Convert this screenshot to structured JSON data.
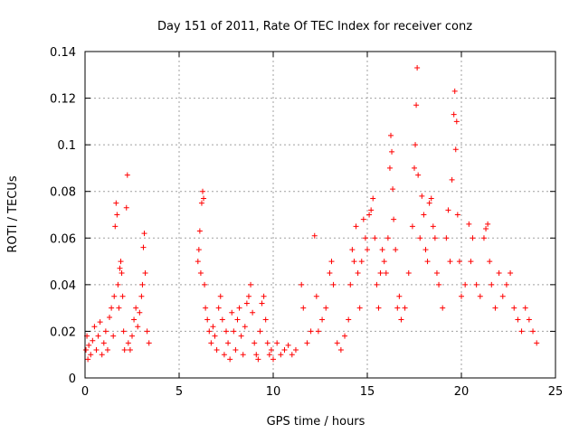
{
  "chart_data": {
    "type": "scatter",
    "title": "Day 151 of 2011, Rate Of TEC Index for receiver conz",
    "xlabel": "GPS time / hours",
    "ylabel": "ROTI / TECUs",
    "xlim": [
      0,
      25
    ],
    "ylim": [
      0,
      0.14
    ],
    "xticks": [
      "0",
      "5",
      "10",
      "15",
      "20",
      "25"
    ],
    "yticks": [
      "0",
      "0.02",
      "0.04",
      "0.06",
      "0.08",
      "0.1",
      "0.12",
      "0.14"
    ],
    "grid": true,
    "marker": "plus",
    "color": "#ff0000",
    "series": [
      {
        "points": [
          [
            0.05,
            0.012
          ],
          [
            0.1,
            0.018
          ],
          [
            0.15,
            0.008
          ],
          [
            0.2,
            0.014
          ],
          [
            0.3,
            0.01
          ],
          [
            0.4,
            0.016
          ],
          [
            0.5,
            0.022
          ],
          [
            0.6,
            0.012
          ],
          [
            0.7,
            0.018
          ],
          [
            0.8,
            0.024
          ],
          [
            0.9,
            0.01
          ],
          [
            1.0,
            0.015
          ],
          [
            1.1,
            0.02
          ],
          [
            1.2,
            0.012
          ],
          [
            1.3,
            0.026
          ],
          [
            1.4,
            0.03
          ],
          [
            1.5,
            0.018
          ],
          [
            1.55,
            0.035
          ],
          [
            1.6,
            0.065
          ],
          [
            1.65,
            0.075
          ],
          [
            1.7,
            0.07
          ],
          [
            1.75,
            0.04
          ],
          [
            1.8,
            0.03
          ],
          [
            1.85,
            0.047
          ],
          [
            1.9,
            0.05
          ],
          [
            1.95,
            0.045
          ],
          [
            2.0,
            0.035
          ],
          [
            2.05,
            0.02
          ],
          [
            2.1,
            0.012
          ],
          [
            2.2,
            0.073
          ],
          [
            2.25,
            0.087
          ],
          [
            2.3,
            0.015
          ],
          [
            2.4,
            0.012
          ],
          [
            2.5,
            0.018
          ],
          [
            2.6,
            0.025
          ],
          [
            2.7,
            0.03
          ],
          [
            2.8,
            0.022
          ],
          [
            2.9,
            0.028
          ],
          [
            3.0,
            0.035
          ],
          [
            3.05,
            0.04
          ],
          [
            3.1,
            0.056
          ],
          [
            3.15,
            0.062
          ],
          [
            3.2,
            0.045
          ],
          [
            3.3,
            0.02
          ],
          [
            3.4,
            0.015
          ],
          [
            6.0,
            0.05
          ],
          [
            6.05,
            0.055
          ],
          [
            6.1,
            0.063
          ],
          [
            6.15,
            0.045
          ],
          [
            6.2,
            0.075
          ],
          [
            6.25,
            0.08
          ],
          [
            6.3,
            0.077
          ],
          [
            6.35,
            0.04
          ],
          [
            6.4,
            0.03
          ],
          [
            6.5,
            0.025
          ],
          [
            6.6,
            0.02
          ],
          [
            6.7,
            0.015
          ],
          [
            6.8,
            0.022
          ],
          [
            6.9,
            0.018
          ],
          [
            7.0,
            0.012
          ],
          [
            7.1,
            0.03
          ],
          [
            7.2,
            0.035
          ],
          [
            7.3,
            0.025
          ],
          [
            7.4,
            0.01
          ],
          [
            7.5,
            0.02
          ],
          [
            7.6,
            0.015
          ],
          [
            7.7,
            0.008
          ],
          [
            7.8,
            0.028
          ],
          [
            7.9,
            0.02
          ],
          [
            8.0,
            0.012
          ],
          [
            8.1,
            0.025
          ],
          [
            8.2,
            0.03
          ],
          [
            8.3,
            0.018
          ],
          [
            8.4,
            0.01
          ],
          [
            8.5,
            0.022
          ],
          [
            8.6,
            0.032
          ],
          [
            8.7,
            0.035
          ],
          [
            8.8,
            0.04
          ],
          [
            8.9,
            0.028
          ],
          [
            9.0,
            0.015
          ],
          [
            9.1,
            0.01
          ],
          [
            9.2,
            0.008
          ],
          [
            9.3,
            0.02
          ],
          [
            9.4,
            0.032
          ],
          [
            9.5,
            0.035
          ],
          [
            9.6,
            0.025
          ],
          [
            9.7,
            0.015
          ],
          [
            9.8,
            0.01
          ],
          [
            9.9,
            0.012
          ],
          [
            10.0,
            0.008
          ],
          [
            10.2,
            0.015
          ],
          [
            10.4,
            0.01
          ],
          [
            10.6,
            0.012
          ],
          [
            10.8,
            0.014
          ],
          [
            11.0,
            0.01
          ],
          [
            11.2,
            0.012
          ],
          [
            11.5,
            0.04
          ],
          [
            11.6,
            0.03
          ],
          [
            11.8,
            0.015
          ],
          [
            12.0,
            0.02
          ],
          [
            12.2,
            0.061
          ],
          [
            12.3,
            0.035
          ],
          [
            12.4,
            0.02
          ],
          [
            12.6,
            0.025
          ],
          [
            12.8,
            0.03
          ],
          [
            13.0,
            0.045
          ],
          [
            13.1,
            0.05
          ],
          [
            13.2,
            0.04
          ],
          [
            13.4,
            0.015
          ],
          [
            13.6,
            0.012
          ],
          [
            13.8,
            0.018
          ],
          [
            14.0,
            0.025
          ],
          [
            14.1,
            0.04
          ],
          [
            14.2,
            0.055
          ],
          [
            14.3,
            0.05
          ],
          [
            14.4,
            0.065
          ],
          [
            14.5,
            0.045
          ],
          [
            14.6,
            0.03
          ],
          [
            14.7,
            0.05
          ],
          [
            14.8,
            0.068
          ],
          [
            14.9,
            0.06
          ],
          [
            15.0,
            0.055
          ],
          [
            15.1,
            0.07
          ],
          [
            15.2,
            0.072
          ],
          [
            15.3,
            0.077
          ],
          [
            15.4,
            0.06
          ],
          [
            15.5,
            0.04
          ],
          [
            15.6,
            0.03
          ],
          [
            15.7,
            0.045
          ],
          [
            15.8,
            0.055
          ],
          [
            15.9,
            0.05
          ],
          [
            16.0,
            0.045
          ],
          [
            16.1,
            0.06
          ],
          [
            16.2,
            0.09
          ],
          [
            16.25,
            0.104
          ],
          [
            16.3,
            0.097
          ],
          [
            16.35,
            0.081
          ],
          [
            16.4,
            0.068
          ],
          [
            16.5,
            0.055
          ],
          [
            16.6,
            0.03
          ],
          [
            16.7,
            0.035
          ],
          [
            16.8,
            0.025
          ],
          [
            17.0,
            0.03
          ],
          [
            17.2,
            0.045
          ],
          [
            17.4,
            0.065
          ],
          [
            17.5,
            0.09
          ],
          [
            17.55,
            0.1
          ],
          [
            17.6,
            0.117
          ],
          [
            17.65,
            0.133
          ],
          [
            17.7,
            0.087
          ],
          [
            17.8,
            0.06
          ],
          [
            17.9,
            0.078
          ],
          [
            18.0,
            0.07
          ],
          [
            18.1,
            0.055
          ],
          [
            18.2,
            0.05
          ],
          [
            18.3,
            0.075
          ],
          [
            18.4,
            0.077
          ],
          [
            18.5,
            0.065
          ],
          [
            18.6,
            0.06
          ],
          [
            18.7,
            0.045
          ],
          [
            18.8,
            0.04
          ],
          [
            19.0,
            0.03
          ],
          [
            19.2,
            0.06
          ],
          [
            19.3,
            0.072
          ],
          [
            19.4,
            0.05
          ],
          [
            19.5,
            0.085
          ],
          [
            19.6,
            0.113
          ],
          [
            19.65,
            0.123
          ],
          [
            19.7,
            0.098
          ],
          [
            19.75,
            0.11
          ],
          [
            19.8,
            0.07
          ],
          [
            19.9,
            0.05
          ],
          [
            20.0,
            0.035
          ],
          [
            20.2,
            0.04
          ],
          [
            20.4,
            0.066
          ],
          [
            20.5,
            0.05
          ],
          [
            20.6,
            0.06
          ],
          [
            20.8,
            0.04
          ],
          [
            21.0,
            0.035
          ],
          [
            21.2,
            0.06
          ],
          [
            21.3,
            0.064
          ],
          [
            21.4,
            0.066
          ],
          [
            21.5,
            0.05
          ],
          [
            21.6,
            0.04
          ],
          [
            21.8,
            0.03
          ],
          [
            22.0,
            0.045
          ],
          [
            22.2,
            0.035
          ],
          [
            22.4,
            0.04
          ],
          [
            22.6,
            0.045
          ],
          [
            22.8,
            0.03
          ],
          [
            23.0,
            0.025
          ],
          [
            23.2,
            0.02
          ],
          [
            23.4,
            0.03
          ],
          [
            23.6,
            0.025
          ],
          [
            23.8,
            0.02
          ],
          [
            24.0,
            0.015
          ]
        ]
      }
    ]
  }
}
